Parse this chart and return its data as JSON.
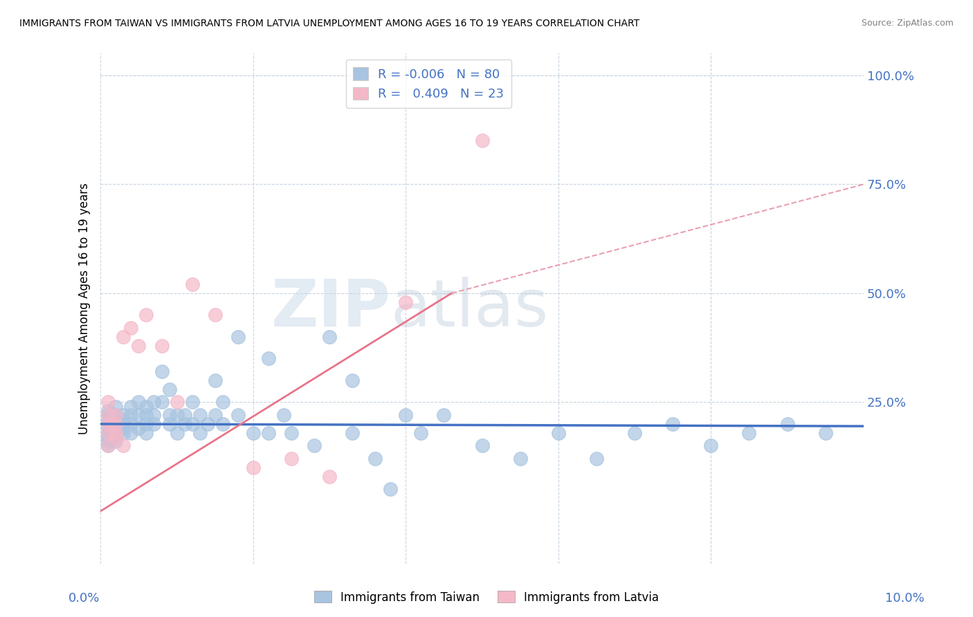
{
  "title": "IMMIGRANTS FROM TAIWAN VS IMMIGRANTS FROM LATVIA UNEMPLOYMENT AMONG AGES 16 TO 19 YEARS CORRELATION CHART",
  "source": "Source: ZipAtlas.com",
  "ylabel": "Unemployment Among Ages 16 to 19 years",
  "ytick_labels": [
    "100.0%",
    "75.0%",
    "50.0%",
    "25.0%"
  ],
  "ytick_values": [
    1.0,
    0.75,
    0.5,
    0.25
  ],
  "xlim": [
    0.0,
    0.1
  ],
  "ylim": [
    -0.12,
    1.05
  ],
  "legend_R_taiwan": "-0.006",
  "legend_N_taiwan": "80",
  "legend_R_latvia": "0.409",
  "legend_N_latvia": "23",
  "taiwan_color": "#a8c4e0",
  "latvia_color": "#f4b8c8",
  "taiwan_line_color": "#4472c4",
  "latvia_line_color": "#e8748a",
  "latvia_dash_color": "#e8a0b0",
  "background_color": "#ffffff",
  "grid_color": "#c8d4e0",
  "watermark_zip": "ZIP",
  "watermark_atlas": "atlas",
  "taiwan_scatter_x": [
    0.001,
    0.001,
    0.001,
    0.001,
    0.001,
    0.001,
    0.001,
    0.001,
    0.001,
    0.002,
    0.002,
    0.002,
    0.002,
    0.002,
    0.002,
    0.002,
    0.002,
    0.003,
    0.003,
    0.003,
    0.003,
    0.003,
    0.004,
    0.004,
    0.004,
    0.004,
    0.005,
    0.005,
    0.005,
    0.006,
    0.006,
    0.006,
    0.006,
    0.007,
    0.007,
    0.007,
    0.008,
    0.008,
    0.009,
    0.009,
    0.009,
    0.01,
    0.01,
    0.011,
    0.011,
    0.012,
    0.012,
    0.013,
    0.013,
    0.014,
    0.015,
    0.015,
    0.016,
    0.016,
    0.018,
    0.018,
    0.02,
    0.022,
    0.022,
    0.024,
    0.025,
    0.028,
    0.03,
    0.033,
    0.033,
    0.036,
    0.038,
    0.04,
    0.042,
    0.045,
    0.05,
    0.055,
    0.06,
    0.065,
    0.07,
    0.075,
    0.08,
    0.085,
    0.09,
    0.095
  ],
  "taiwan_scatter_y": [
    0.2,
    0.18,
    0.22,
    0.19,
    0.17,
    0.21,
    0.15,
    0.23,
    0.16,
    0.2,
    0.22,
    0.18,
    0.19,
    0.16,
    0.24,
    0.21,
    0.17,
    0.2,
    0.22,
    0.18,
    0.19,
    0.21,
    0.2,
    0.22,
    0.18,
    0.24,
    0.22,
    0.19,
    0.25,
    0.2,
    0.22,
    0.18,
    0.24,
    0.22,
    0.25,
    0.2,
    0.32,
    0.25,
    0.22,
    0.28,
    0.2,
    0.22,
    0.18,
    0.2,
    0.22,
    0.2,
    0.25,
    0.22,
    0.18,
    0.2,
    0.3,
    0.22,
    0.25,
    0.2,
    0.4,
    0.22,
    0.18,
    0.35,
    0.18,
    0.22,
    0.18,
    0.15,
    0.4,
    0.3,
    0.18,
    0.12,
    0.05,
    0.22,
    0.18,
    0.22,
    0.15,
    0.12,
    0.18,
    0.12,
    0.18,
    0.2,
    0.15,
    0.18,
    0.2,
    0.18
  ],
  "latvia_scatter_x": [
    0.001,
    0.001,
    0.001,
    0.001,
    0.001,
    0.002,
    0.002,
    0.002,
    0.002,
    0.003,
    0.003,
    0.004,
    0.005,
    0.006,
    0.008,
    0.01,
    0.012,
    0.015,
    0.02,
    0.025,
    0.03,
    0.04,
    0.05
  ],
  "latvia_scatter_y": [
    0.2,
    0.18,
    0.22,
    0.15,
    0.25,
    0.2,
    0.18,
    0.22,
    0.17,
    0.4,
    0.15,
    0.42,
    0.38,
    0.45,
    0.38,
    0.25,
    0.52,
    0.45,
    0.1,
    0.12,
    0.08,
    0.48,
    0.85
  ]
}
